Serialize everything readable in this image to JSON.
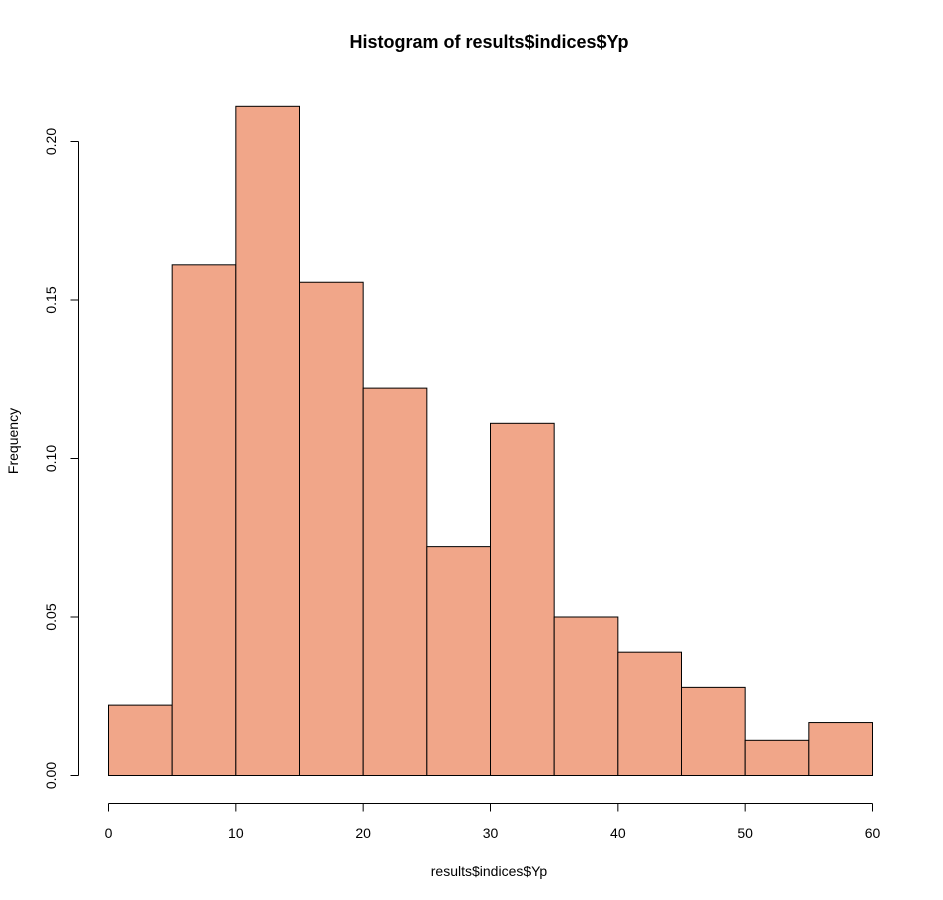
{
  "chart_data": {
    "type": "bar",
    "subtype": "histogram",
    "title": "Histogram of results$indices$Yp",
    "xlabel": "results$indices$Yp",
    "ylabel": "Frequency",
    "bin_edges": [
      0,
      5,
      10,
      15,
      20,
      25,
      30,
      35,
      40,
      45,
      50,
      55,
      60
    ],
    "values": [
      0.0222,
      0.1611,
      0.2111,
      0.1556,
      0.1222,
      0.0722,
      0.1111,
      0.05,
      0.0389,
      0.0278,
      0.0111,
      0.0167
    ],
    "xlim": [
      0,
      60
    ],
    "ylim": [
      0,
      0.2
    ],
    "xticks": [
      0,
      10,
      20,
      30,
      40,
      50,
      60
    ],
    "xtick_labels": [
      "0",
      "10",
      "20",
      "30",
      "40",
      "50",
      "60"
    ],
    "yticks": [
      0,
      0.05,
      0.1,
      0.15,
      0.2
    ],
    "ytick_labels": [
      "0.00",
      "0.05",
      "0.10",
      "0.15",
      "0.20"
    ],
    "grid": false,
    "bar_color": "#F1A689",
    "edge_color": "#000000"
  }
}
